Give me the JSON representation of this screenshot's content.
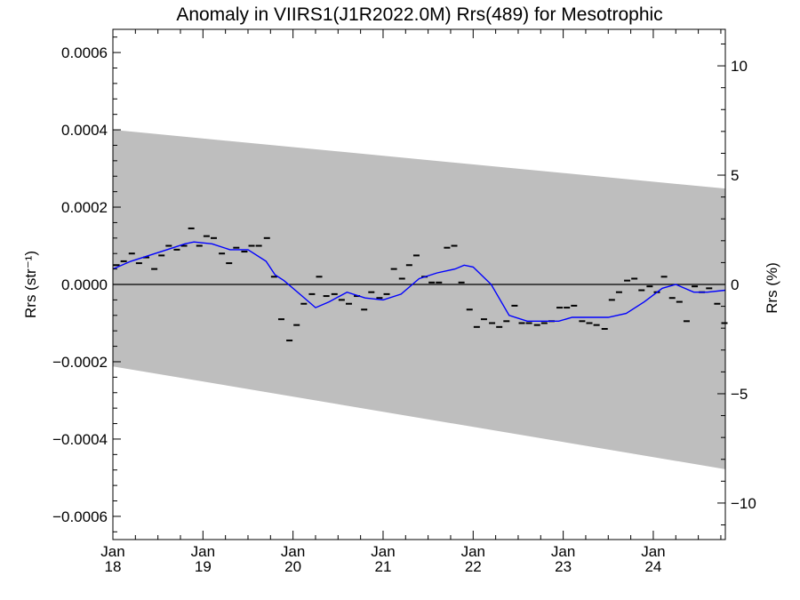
{
  "chart_data": {
    "type": "scatter",
    "title": "Anomaly in VIIRS1(J1R2022.0M) Rrs(489) for Mesotrophic",
    "ylabel": "Rrs (str⁻¹)",
    "y2label": "Rrs (%)",
    "xlabel": "",
    "xlim": [
      2018.0,
      2024.8
    ],
    "ylim": [
      -0.00066,
      0.00066
    ],
    "y2lim": [
      -11.67,
      11.67
    ],
    "grid": false,
    "legend": "none",
    "x_ticks": [
      {
        "value": 2018,
        "line1": "Jan",
        "line2": "18"
      },
      {
        "value": 2019,
        "line1": "Jan",
        "line2": "19"
      },
      {
        "value": 2020,
        "line1": "Jan",
        "line2": "20"
      },
      {
        "value": 2021,
        "line1": "Jan",
        "line2": "21"
      },
      {
        "value": 2022,
        "line1": "Jan",
        "line2": "22"
      },
      {
        "value": 2023,
        "line1": "Jan",
        "line2": "23"
      },
      {
        "value": 2024,
        "line1": "Jan",
        "line2": "24"
      }
    ],
    "y_ticks": [
      {
        "value": 0.0006,
        "label": "0.0006"
      },
      {
        "value": 0.0004,
        "label": "0.0004"
      },
      {
        "value": 0.0002,
        "label": "0.0002"
      },
      {
        "value": 0.0,
        "label": "0.0000"
      },
      {
        "value": -0.0002,
        "label": "−0.0002"
      },
      {
        "value": -0.0004,
        "label": "−0.0004"
      },
      {
        "value": -0.0006,
        "label": "−0.0006"
      }
    ],
    "y2_ticks": [
      {
        "value": 10,
        "label": "10"
      },
      {
        "value": 5,
        "label": "5"
      },
      {
        "value": 0,
        "label": "0"
      },
      {
        "value": -5,
        "label": "−5"
      },
      {
        "value": -10,
        "label": "−10"
      }
    ],
    "band": {
      "x": [
        2018.0,
        2024.8
      ],
      "upper": [
        0.0004,
        0.000248
      ],
      "lower": [
        -0.000212,
        -0.000478
      ],
      "color": "#bebebe"
    },
    "zero_line": {
      "value": 0,
      "color": "#000000"
    },
    "points": {
      "marker": "dash",
      "color": "#000000",
      "x": [
        2018.04,
        2018.12,
        2018.21,
        2018.29,
        2018.37,
        2018.46,
        2018.54,
        2018.62,
        2018.71,
        2018.79,
        2018.87,
        2018.96,
        2019.04,
        2019.12,
        2019.21,
        2019.29,
        2019.37,
        2019.46,
        2019.54,
        2019.62,
        2019.71,
        2019.79,
        2019.87,
        2019.96,
        2020.04,
        2020.12,
        2020.21,
        2020.29,
        2020.37,
        2020.46,
        2020.54,
        2020.62,
        2020.71,
        2020.79,
        2020.87,
        2020.96,
        2021.04,
        2021.12,
        2021.21,
        2021.29,
        2021.37,
        2021.46,
        2021.54,
        2021.62,
        2021.71,
        2021.79,
        2021.87,
        2021.96,
        2022.04,
        2022.12,
        2022.21,
        2022.29,
        2022.37,
        2022.46,
        2022.54,
        2022.62,
        2022.71,
        2022.79,
        2022.87,
        2022.96,
        2023.04,
        2023.12,
        2023.21,
        2023.29,
        2023.37,
        2023.46,
        2023.54,
        2023.62,
        2023.71,
        2023.79,
        2023.87,
        2023.96,
        2024.04,
        2024.12,
        2024.21,
        2024.29,
        2024.37,
        2024.46,
        2024.54,
        2024.62,
        2024.71,
        2024.79
      ],
      "y": [
        5e-05,
        6e-05,
        8e-05,
        5.5e-05,
        7e-05,
        4e-05,
        7.5e-05,
        0.0001,
        9e-05,
        0.0001,
        0.000145,
        0.0001,
        0.000125,
        0.00012,
        8e-05,
        5.5e-05,
        9.5e-05,
        8.5e-05,
        0.0001,
        0.0001,
        0.00012,
        2e-05,
        -9e-05,
        -0.000145,
        -0.000105,
        -5e-05,
        -2.5e-05,
        2e-05,
        -3e-05,
        -2.5e-05,
        -4e-05,
        -5e-05,
        -3e-05,
        -6.5e-05,
        -2e-05,
        -3.5e-05,
        -2.5e-05,
        4e-05,
        1.5e-05,
        5e-05,
        7.5e-05,
        2e-05,
        5e-06,
        5e-06,
        9.5e-05,
        0.0001,
        5e-06,
        -6.5e-05,
        -0.00011,
        -9e-05,
        -0.0001,
        -0.00011,
        -9.5e-05,
        -5.5e-05,
        -0.0001,
        -0.0001,
        -0.000105,
        -0.0001,
        -9.5e-05,
        -6e-05,
        -6e-05,
        -5.5e-05,
        -9.5e-05,
        -0.0001,
        -0.000105,
        -0.000115,
        -4e-05,
        -2e-05,
        1e-05,
        1.5e-05,
        -1.5e-05,
        -5e-06,
        -2e-05,
        2e-05,
        -3.5e-05,
        -4.5e-05,
        -9.5e-05,
        -5e-06,
        -2e-05,
        -1e-05,
        -5e-05,
        -0.0001
      ]
    },
    "smooth": {
      "color": "#0000ff",
      "x": [
        2018.0,
        2018.2,
        2018.4,
        2018.6,
        2018.8,
        2018.9,
        2019.1,
        2019.3,
        2019.5,
        2019.7,
        2019.8,
        2019.9,
        2020.1,
        2020.25,
        2020.4,
        2020.6,
        2020.8,
        2021.0,
        2021.2,
        2021.4,
        2021.6,
        2021.8,
        2021.9,
        2022.0,
        2022.2,
        2022.4,
        2022.6,
        2022.8,
        2022.95,
        2023.1,
        2023.3,
        2023.5,
        2023.7,
        2023.9,
        2024.1,
        2024.25,
        2024.45,
        2024.6,
        2024.8
      ],
      "y": [
        4e-05,
        6e-05,
        7.5e-05,
        9e-05,
        0.000105,
        0.00011,
        0.000105,
        9e-05,
        9e-05,
        6e-05,
        2.5e-05,
        1e-05,
        -3e-05,
        -6e-05,
        -4.5e-05,
        -2e-05,
        -3.5e-05,
        -4e-05,
        -2.5e-05,
        1.5e-05,
        3e-05,
        4e-05,
        5e-05,
        4.5e-05,
        0.0,
        -8e-05,
        -9.5e-05,
        -9.5e-05,
        -9.5e-05,
        -8.5e-05,
        -8.5e-05,
        -8.5e-05,
        -7.5e-05,
        -4.5e-05,
        -1e-05,
        0.0,
        -2e-05,
        -2e-05,
        -1.5e-05
      ]
    }
  }
}
